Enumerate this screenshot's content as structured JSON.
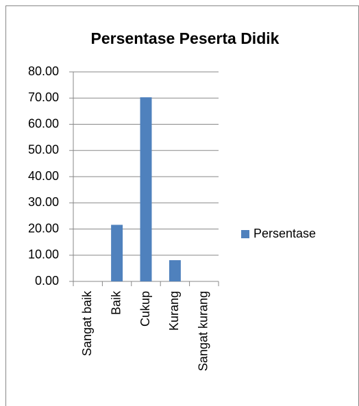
{
  "chart_data": {
    "type": "bar",
    "title": "Persentase Peserta Didik",
    "categories": [
      "Sangat baik",
      "Baik",
      "Cukup",
      "Kurang",
      "Sangat kurang"
    ],
    "series": [
      {
        "name": "Persentase",
        "color": "#4f81bd",
        "values": [
          0,
          21.6,
          70.3,
          8.1,
          0
        ]
      }
    ],
    "ylim": [
      0,
      80
    ],
    "yticks": [
      {
        "value": 0,
        "label": "0.00"
      },
      {
        "value": 10,
        "label": "10.00"
      },
      {
        "value": 20,
        "label": "20.00"
      },
      {
        "value": 30,
        "label": "30.00"
      },
      {
        "value": 40,
        "label": "40.00"
      },
      {
        "value": 50,
        "label": "50.00"
      },
      {
        "value": 60,
        "label": "60.00"
      },
      {
        "value": 70,
        "label": "70.00"
      },
      {
        "value": 80,
        "label": "80.00"
      }
    ],
    "grid": true,
    "legend": "right"
  }
}
